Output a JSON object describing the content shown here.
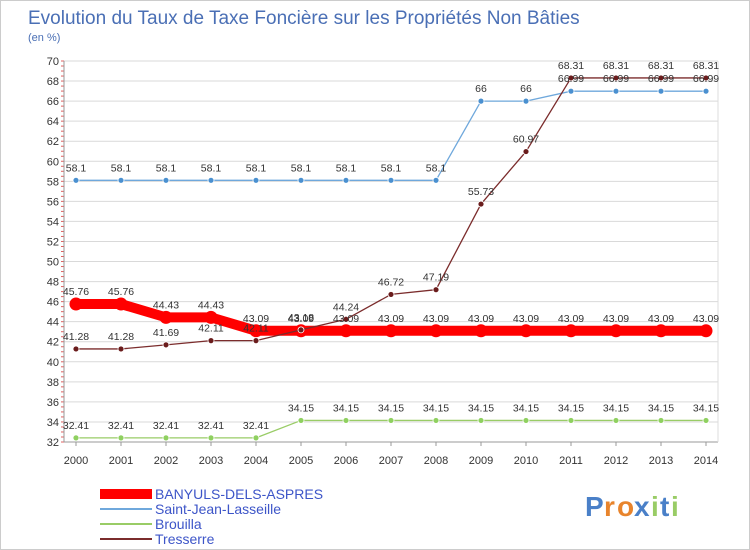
{
  "chart_data": {
    "type": "line",
    "title": "Evolution du Taux de Taxe Foncière sur les Propriétés Non Bâties",
    "subtitle": "(en %)",
    "x": [
      "2000",
      "2001",
      "2002",
      "2003",
      "2004",
      "2005",
      "2006",
      "2007",
      "2008",
      "2009",
      "2010",
      "2011",
      "2012",
      "2013",
      "2014"
    ],
    "ylim": [
      32,
      70
    ],
    "yticks": [
      32,
      34,
      36,
      38,
      40,
      42,
      44,
      46,
      48,
      50,
      52,
      54,
      56,
      58,
      60,
      62,
      64,
      66,
      68,
      70
    ],
    "grid": "horizontal",
    "legend_position": "bottom-left",
    "series": [
      {
        "name": "BANYULS-DELS-ASPRES",
        "color": "#ff0000",
        "values": [
          45.76,
          45.76,
          44.43,
          44.43,
          43.09,
          43.09,
          43.09,
          43.09,
          43.09,
          43.09,
          43.09,
          43.09,
          43.09,
          43.09,
          43.09
        ],
        "labels": [
          "45.76",
          "45.76",
          "44.43",
          "44.43",
          "43.09",
          "43.09",
          "43.09",
          "43.09",
          "43.09",
          "43.09",
          "43.09",
          "43.09",
          "43.09",
          "43.09",
          "43.09"
        ]
      },
      {
        "name": "Saint-Jean-Lasseille",
        "color": "#6fa8dc",
        "values": [
          58.1,
          58.1,
          58.1,
          58.1,
          58.1,
          58.1,
          58.1,
          58.1,
          58.1,
          66,
          66,
          66.99,
          66.99,
          66.99,
          66.99
        ],
        "labels": [
          "58.1",
          "58.1",
          "58.1",
          "58.1",
          "58.1",
          "58.1",
          "58.1",
          "58.1",
          "58.1",
          "66",
          "66",
          "66.99",
          "66.99",
          "66.99",
          "66.99"
        ]
      },
      {
        "name": "Brouilla",
        "color": "#99cc66",
        "values": [
          32.41,
          32.41,
          32.41,
          32.41,
          32.41,
          34.15,
          34.15,
          34.15,
          34.15,
          34.15,
          34.15,
          34.15,
          34.15,
          34.15,
          34.15
        ],
        "labels": [
          "32.41",
          "32.41",
          "32.41",
          "32.41",
          "32.41",
          "34.15",
          "34.15",
          "34.15",
          "34.15",
          "34.15",
          "34.15",
          "34.15",
          "34.15",
          "34.15",
          "34.15"
        ]
      },
      {
        "name": "Tresserre",
        "color": "#7b2c2c",
        "values": [
          41.28,
          41.28,
          41.69,
          42.11,
          42.11,
          43.18,
          44.24,
          46.72,
          47.19,
          55.73,
          60.97,
          68.31,
          68.31,
          68.31,
          68.31
        ],
        "labels": [
          "41.28",
          "41.28",
          "41.69",
          "42.11",
          "42.11",
          "43.18",
          "44.24",
          "46.72",
          "47.19",
          "55.73",
          "60.97",
          "68.31",
          "68.31",
          "68.31",
          "68.31"
        ]
      }
    ]
  },
  "brand": {
    "letters": [
      "P",
      "r",
      "o",
      "x",
      "i",
      "t",
      "i"
    ]
  }
}
